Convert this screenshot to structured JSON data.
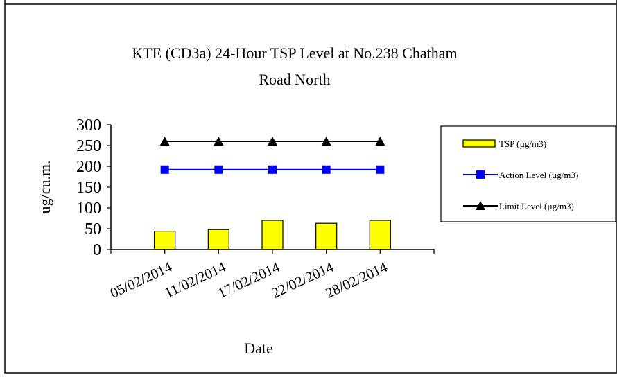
{
  "chart_data": {
    "type": "bar",
    "title_line1": "KTE  (CD3a) 24-Hour TSP Level at No.238 Chatham",
    "title_line2": "Road North",
    "xlabel": "Date",
    "ylabel": "ug/cu.m.",
    "ylim": [
      0,
      300
    ],
    "yticks": [
      "0",
      "50",
      "100",
      "150",
      "200",
      "250",
      "300"
    ],
    "categories": [
      "05/02/2014",
      "11/02/2014",
      "17/02/2014",
      "22/02/2014",
      "28/02/2014"
    ],
    "legend_position": "right",
    "grid": false,
    "series": [
      {
        "name": "TSP (µg/m3)",
        "kind": "bar",
        "color": "#ffff00",
        "values": [
          44,
          48,
          70,
          63,
          70
        ]
      },
      {
        "name": "Action Level (µg/m3)",
        "kind": "line",
        "color": "#0000ff",
        "marker": "square",
        "values": [
          192,
          192,
          192,
          192,
          192
        ]
      },
      {
        "name": "Limit Level (µg/m3)",
        "kind": "line",
        "color": "#000000",
        "marker": "triangle",
        "values": [
          260,
          260,
          260,
          260,
          260
        ]
      }
    ]
  }
}
